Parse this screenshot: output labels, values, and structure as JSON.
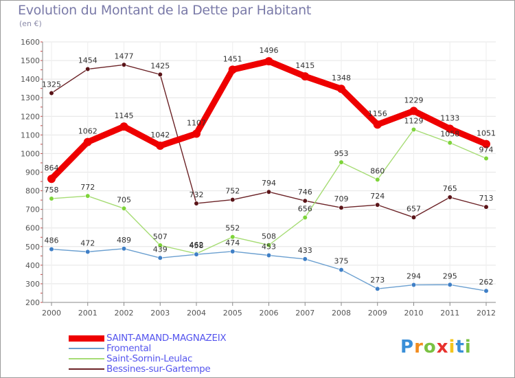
{
  "chart_data": {
    "type": "line",
    "title": "Evolution du Montant de la Dette par Habitant",
    "subtitle": "(en €)",
    "xlabel": "",
    "ylabel": "",
    "categories": [
      "2000",
      "2001",
      "2002",
      "2003",
      "2004",
      "2005",
      "2006",
      "2007",
      "2008",
      "2009",
      "2010",
      "2011",
      "2012"
    ],
    "ylim": [
      200,
      1600
    ],
    "yticks": [
      200,
      300,
      400,
      500,
      600,
      700,
      800,
      900,
      1000,
      1100,
      1200,
      1300,
      1400,
      1500,
      1600
    ],
    "grid": true,
    "legend_position": "bottom-left",
    "series": [
      {
        "name": "Bessines-sur-Gartempe",
        "color": "#6b2226",
        "marker_color": "#5a1418",
        "values": [
          1325,
          1454,
          1477,
          1425,
          732,
          752,
          794,
          746,
          709,
          724,
          657,
          765,
          713
        ]
      },
      {
        "name": "Saint-Sornin-Leulac",
        "color": "#a6dc74",
        "marker_color": "#7ed43a",
        "values": [
          758,
          772,
          705,
          507,
          462,
          552,
          508,
          656,
          953,
          860,
          1129,
          1058,
          974
        ]
      },
      {
        "name": "Fromental",
        "color": "#6a9fd0",
        "marker_color": "#3f7fc6",
        "values": [
          486,
          472,
          489,
          439,
          458,
          474,
          453,
          433,
          375,
          273,
          294,
          295,
          262
        ]
      },
      {
        "name": "SAINT-AMAND-MAGNAZEIX",
        "color": "#ee0000",
        "marker_color": "#ee0000",
        "values": [
          864,
          1062,
          1145,
          1042,
          1107,
          1451,
          1496,
          1415,
          1348,
          1156,
          1229,
          1133,
          1051
        ]
      }
    ]
  },
  "legend": {
    "items": [
      {
        "label": "SAINT-AMAND-MAGNAZEIX",
        "color": "#ee0000"
      },
      {
        "label": "Fromental",
        "color": "#6a9fd0"
      },
      {
        "label": "Saint-Sornin-Leulac",
        "color": "#a6dc74"
      },
      {
        "label": "Bessines-sur-Gartempe",
        "color": "#6b2226"
      }
    ]
  },
  "brand": {
    "letters": [
      "P",
      "r",
      "o",
      "x",
      "i",
      "t",
      "i"
    ],
    "colors": [
      "#3a8fd8",
      "#f28c1e",
      "#7ac143",
      "#e8322e",
      "#f2c51e",
      "#3a8fd8",
      "#7ac143"
    ]
  }
}
